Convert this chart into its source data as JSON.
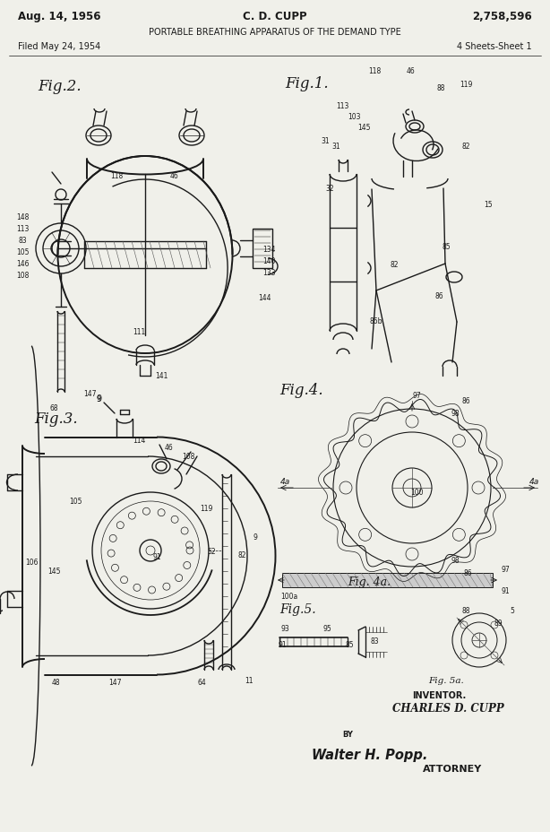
{
  "background_color": "#f0f0ea",
  "title_line1": "Aug. 14, 1956",
  "title_center": "C. D. CUPP",
  "title_right": "2,758,596",
  "subtitle": "PORTABLE BREATHING APPARATUS OF THE DEMAND TYPE",
  "filed": "Filed May 24, 1954",
  "sheets": "4 Sheets-Sheet 1",
  "inventor": "CHARLES D. CUPP",
  "attorney_label": "ATTORNEY",
  "by_label": "BY",
  "inventor_label": "INVENTOR.",
  "fig5a_label": "Fig. 5a.",
  "fig1_label": "Fig.1.",
  "fig2_label": "Fig.2.",
  "fig3_label": "Fig.3.",
  "fig4_label": "Fig.4.",
  "fig4a_label": "Fig. 4a.",
  "fig5_label": "Fig.5.",
  "line_color": "#1a1a1a",
  "lw_main": 1.0,
  "lw_thin": 0.5,
  "lw_thick": 1.4
}
